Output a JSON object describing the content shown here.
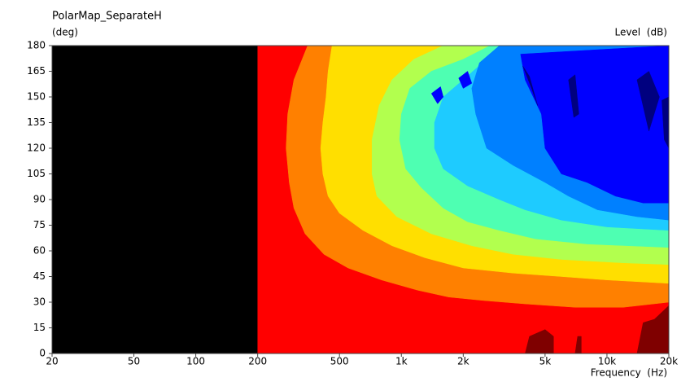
{
  "chart_data": {
    "type": "contour",
    "title": "PolarMap_SeparateH",
    "y_label": "(deg)",
    "colorbar_label": "Level  (dB)",
    "x_label": "Frequency  (Hz)",
    "xscale": "log",
    "xlim": [
      20,
      20000
    ],
    "ylim": [
      0,
      180
    ],
    "yticks": [
      0,
      15,
      30,
      45,
      60,
      75,
      90,
      105,
      120,
      135,
      150,
      165,
      180
    ],
    "xticks": [
      20,
      50,
      100,
      200,
      500,
      {
        "value": 1000,
        "label": "1k"
      },
      {
        "value": 2000,
        "label": "2k"
      },
      {
        "value": 5000,
        "label": "5k"
      },
      {
        "value": 10000,
        "label": "10k"
      },
      {
        "value": 20000,
        "label": "20k"
      }
    ],
    "contours": [
      {
        "color": "#000000",
        "x": [
          20,
          200,
          200,
          20
        ],
        "y": [
          0,
          0,
          180,
          180
        ]
      },
      {
        "color": "#ff0000",
        "x": [
          200,
          20000,
          20000,
          200
        ],
        "y": [
          0,
          0,
          180,
          180
        ]
      },
      {
        "color": "#ff8000",
        "x": [
          350,
          300,
          280,
          275,
          285,
          300,
          340,
          420,
          550,
          800,
          1200,
          1700,
          2500,
          4000,
          7000,
          12000,
          20000,
          20000
        ],
        "y": [
          180,
          160,
          140,
          120,
          100,
          85,
          70,
          58,
          50,
          43,
          37,
          33,
          31,
          29,
          27,
          27,
          30,
          180
        ]
      },
      {
        "color": "#ffdf00",
        "x": [
          460,
          440,
          430,
          415,
          405,
          415,
          440,
          500,
          650,
          900,
          1300,
          2000,
          3500,
          6000,
          10000,
          20000,
          20000
        ],
        "y": [
          180,
          165,
          150,
          135,
          120,
          105,
          92,
          82,
          72,
          63,
          56,
          50,
          47,
          45,
          43,
          41,
          180
        ]
      },
      {
        "color": "#b2ff4e",
        "x": [
          1600,
          1150,
          900,
          780,
          720,
          720,
          760,
          950,
          1400,
          2200,
          3500,
          6000,
          12000,
          20000,
          20000
        ],
        "y": [
          180,
          172,
          160,
          145,
          125,
          105,
          92,
          80,
          70,
          63,
          58,
          55,
          53,
          52,
          180
        ]
      },
      {
        "color": "#4effb2",
        "x": [
          2700,
          2000,
          1400,
          1100,
          1000,
          980,
          1050,
          1250,
          1600,
          2100,
          3000,
          4500,
          8000,
          20000,
          20000
        ],
        "y": [
          180,
          172,
          165,
          155,
          140,
          125,
          108,
          97,
          85,
          77,
          72,
          67,
          64,
          62,
          180
        ]
      },
      {
        "color": "#1ecbff",
        "x": [
          3200,
          2600,
          2000,
          1600,
          1450,
          1450,
          1600,
          2100,
          3000,
          4000,
          6000,
          10000,
          20000,
          20000
        ],
        "y": [
          180,
          172,
          160,
          150,
          135,
          120,
          108,
          98,
          90,
          84,
          78,
          74,
          72,
          180
        ]
      },
      {
        "color": "#0080ff",
        "x": [
          3000,
          2400,
          2200,
          2300,
          2600,
          3500,
          5000,
          6500,
          9000,
          14000,
          20000,
          20000
        ],
        "y": [
          180,
          170,
          155,
          140,
          120,
          110,
          100,
          92,
          84,
          80,
          78,
          180
        ]
      },
      {
        "color": "#0000ff",
        "x": [
          3800,
          4000,
          4800,
          5000,
          6000,
          8000,
          11000,
          15000,
          20000,
          20000
        ],
        "y": [
          175,
          160,
          140,
          120,
          105,
          100,
          92,
          88,
          88,
          180
        ]
      },
      {
        "color": "#0000ff",
        "x": [
          1400,
          1550,
          1600,
          1500
        ],
        "y": [
          152,
          156,
          150,
          146
        ]
      },
      {
        "color": "#0000ff",
        "x": [
          1900,
          2100,
          2200,
          2000
        ],
        "y": [
          161,
          165,
          158,
          155
        ]
      },
      {
        "color": "#00007f",
        "x": [
          3900,
          4200,
          4600,
          4300
        ],
        "y": [
          168,
          162,
          145,
          155
        ]
      },
      {
        "color": "#00007f",
        "x": [
          6500,
          7000,
          7300,
          6900
        ],
        "y": [
          160,
          163,
          140,
          138
        ]
      },
      {
        "color": "#00007f",
        "x": [
          14000,
          16000,
          18000,
          16000
        ],
        "y": [
          160,
          165,
          150,
          130
        ]
      },
      {
        "color": "#00007f",
        "x": [
          18500,
          20000,
          20000,
          19000
        ],
        "y": [
          148,
          150,
          120,
          125
        ]
      },
      {
        "color": "#7f0000",
        "x": [
          4000,
          4200,
          5000,
          5500,
          5500
        ],
        "y": [
          0,
          10,
          14,
          10,
          0
        ]
      },
      {
        "color": "#7f0000",
        "x": [
          7000,
          7200,
          7500,
          7500
        ],
        "y": [
          0,
          10,
          10,
          0
        ]
      },
      {
        "color": "#7f0000",
        "x": [
          14000,
          15000,
          17000,
          20000,
          20000
        ],
        "y": [
          0,
          18,
          20,
          28,
          0
        ]
      }
    ]
  }
}
